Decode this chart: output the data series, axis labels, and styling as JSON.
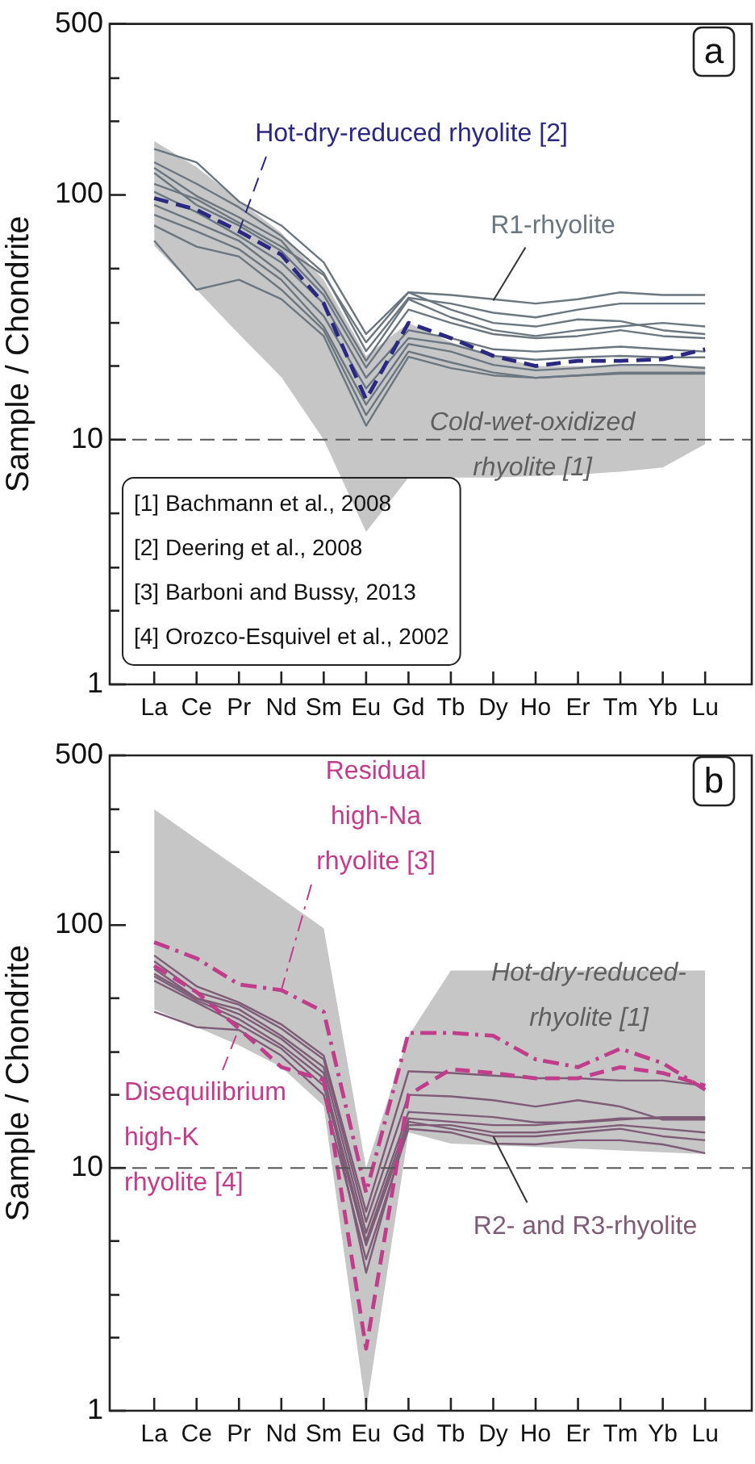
{
  "chart_data": [
    {
      "type": "line",
      "title": "a",
      "ylabel": "Sample / Chondrite",
      "log": "y",
      "ylim": [
        1,
        500
      ],
      "yticks": [
        1,
        {
          "value": 2,
          "label": null
        },
        {
          "value": 3,
          "label": null
        },
        {
          "value": 5,
          "label": null
        },
        10,
        {
          "value": 20,
          "label": null
        },
        {
          "value": 30,
          "label": null
        },
        {
          "value": 50,
          "label": null
        },
        100,
        {
          "value": 200,
          "label": null
        },
        {
          "value": 300,
          "label": null
        },
        500
      ],
      "categories": [
        "La",
        "Ce",
        "Pr",
        "Nd",
        "Sm",
        "Eu",
        "Gd",
        "Tb",
        "Dy",
        "Ho",
        "Er",
        "Tm",
        "Yb",
        "Lu"
      ],
      "ref_lines": [
        {
          "axis": "y",
          "value": 10,
          "color": "#555555",
          "line_style": "dashed"
        }
      ],
      "annotations": [
        "[1] Bachmann et al., 2008",
        "[2] Deering et al., 2008",
        "[3] Barboni and Bussy, 2013",
        "[4] Orozco-Esquivel et al., 2002",
        "Cold-wet-oxidized rhyolite [1]",
        {
          "text": "R1-rhyolite",
          "x": "Dy",
          "y": 37
        }
      ],
      "series": [
        {
          "type": "area",
          "color": "#c6c6c6",
          "values": [
            null,
            null,
            null,
            null,
            null,
            null,
            null,
            null,
            null,
            null,
            null,
            null,
            null,
            null
          ],
          "upper": [
            166,
            130,
            95,
            70,
            45,
            22,
            30,
            25,
            22,
            20,
            20,
            20,
            20,
            20
          ],
          "lower": [
            62,
            41,
            27,
            18,
            10,
            4.2,
            7,
            7,
            7,
            7.1,
            7.2,
            7.4,
            7.7,
            9.6
          ]
        },
        {
          "color": "#6b7780",
          "values": [
            154,
            136,
            94,
            75,
            53,
            27,
            40,
            39,
            37.5,
            36,
            37.5,
            40,
            39,
            39
          ]
        },
        {
          "color": "#6b7780",
          "values": [
            136,
            111,
            89,
            68,
            48,
            23,
            38,
            36,
            33,
            31.6,
            34,
            36,
            36,
            36
          ]
        },
        {
          "color": "#6b7780",
          "values": [
            129,
            99,
            81,
            65,
            41,
            21,
            37.5,
            31.6,
            28,
            26.5,
            28,
            29,
            30,
            29
          ]
        },
        {
          "color": "#6b7780",
          "values": [
            123,
            91,
            75,
            59,
            39,
            19.7,
            34,
            30,
            27,
            26,
            26.5,
            28,
            26.5,
            26
          ]
        },
        {
          "color": "#6b7780",
          "values": [
            103,
            85,
            68,
            53,
            36,
            17.9,
            28,
            26,
            23.4,
            22.9,
            23.4,
            24,
            23.4,
            22.9
          ]
        },
        {
          "color": "#6b7780",
          "values": [
            91,
            77,
            65,
            48,
            32,
            16.2,
            26,
            24.6,
            22,
            21.2,
            21.7,
            22,
            21.7,
            21.7
          ]
        },
        {
          "color": "#6b7780",
          "values": [
            83,
            71,
            60,
            45,
            29,
            13.9,
            24.6,
            22.9,
            20.2,
            19.2,
            19.6,
            20.2,
            20.2,
            19.6
          ]
        },
        {
          "color": "#6b7780",
          "values": [
            75,
            61.5,
            56,
            41,
            28,
            12.6,
            22.9,
            20.7,
            18.8,
            17.9,
            18.3,
            18.8,
            18.8,
            18.8
          ]
        },
        {
          "color": "#6b7780",
          "values": [
            65,
            41,
            45,
            37.5,
            26.5,
            11.4,
            21.8,
            19.6,
            18.3,
            17.9,
            18.3,
            18.6,
            18.6,
            18.6
          ]
        },
        {
          "color": "#6b7780",
          "values": [
            111,
            96,
            77,
            61.5,
            47,
            25,
            40,
            34,
            30,
            29,
            31,
            30.5,
            28,
            27
          ]
        },
        {
          "name": "Hot-dry-reduced rhyolite [2]",
          "color": "#2a2880",
          "line_style": "dashed",
          "values": [
            97,
            87,
            71,
            57,
            36,
            14.6,
            30,
            26,
            22,
            20,
            21,
            21,
            21.3,
            23.4
          ]
        }
      ]
    },
    {
      "type": "line",
      "title": "b",
      "ylabel": "Sample / Chondrite",
      "log": "y",
      "ylim": [
        1,
        500
      ],
      "yticks": [
        1,
        {
          "value": 2,
          "label": null
        },
        {
          "value": 3,
          "label": null
        },
        {
          "value": 5,
          "label": null
        },
        10,
        {
          "value": 20,
          "label": null
        },
        {
          "value": 30,
          "label": null
        },
        {
          "value": 50,
          "label": null
        },
        100,
        {
          "value": 200,
          "label": null
        },
        {
          "value": 300,
          "label": null
        },
        500
      ],
      "categories": [
        "La",
        "Ce",
        "Pr",
        "Nd",
        "Sm",
        "Eu",
        "Gd",
        "Tb",
        "Dy",
        "Ho",
        "Er",
        "Tm",
        "Yb",
        "Lu"
      ],
      "ref_lines": [
        {
          "axis": "y",
          "value": 10,
          "color": "#555555",
          "line_style": "dashed"
        }
      ],
      "annotations": [
        "Hot-dry-reduced-rhyolite [1]",
        {
          "text": "R2- and R3-rhyolite",
          "x": "Dy",
          "y": 13.5
        }
      ],
      "series": [
        {
          "type": "area",
          "color": "#c6c6c6",
          "values": [
            null,
            null,
            null,
            null,
            null,
            null,
            null,
            null,
            null,
            null,
            null,
            null,
            null,
            null
          ],
          "upper": [
            300,
            226,
            171,
            129,
            97,
            10,
            35,
            65,
            65,
            65,
            65,
            65,
            65,
            65
          ],
          "lower": [
            45,
            38,
            32,
            26,
            18,
            1,
            14,
            12.6,
            12.4,
            12.2,
            12,
            11.8,
            11.6,
            11.4
          ]
        },
        {
          "color": "#7e5b77",
          "values": [
            75,
            56,
            48,
            39,
            29,
            6.6,
            25,
            24.6,
            24,
            23.4,
            23.4,
            22.9,
            22.9,
            21.8
          ]
        },
        {
          "color": "#7e5b77",
          "values": [
            71,
            53,
            47,
            37.5,
            28,
            6,
            20,
            19.7,
            19,
            17.9,
            19,
            17.9,
            15.8,
            15.8
          ]
        },
        {
          "color": "#7e5b77",
          "values": [
            66,
            50,
            45,
            35,
            26,
            5.4,
            17,
            16.6,
            16.2,
            15.4,
            15.4,
            15.8,
            16.2,
            16.2
          ]
        },
        {
          "color": "#7e5b77",
          "values": [
            61.5,
            49,
            41,
            32,
            23.4,
            5,
            16,
            15.5,
            15,
            15,
            15.5,
            16,
            16,
            16
          ]
        },
        {
          "color": "#7e5b77",
          "values": [
            59,
            48,
            39,
            31,
            21.8,
            4.8,
            15,
            15,
            14,
            14,
            14.5,
            15,
            14.5,
            14
          ]
        },
        {
          "color": "#7e5b77",
          "values": [
            44,
            38,
            37,
            29,
            20,
            4.2,
            14.5,
            14,
            12.6,
            12.5,
            13,
            13,
            12.5,
            11.5
          ]
        },
        {
          "color": "#7e5b77",
          "values": [
            63,
            50,
            43,
            34,
            24.6,
            3.7,
            15.5,
            14.5,
            13.5,
            13.5,
            14,
            14.5,
            13.5,
            13
          ]
        },
        {
          "name": "Residual high-Na rhyolite [3]",
          "color": "#c13d8c",
          "line_style": "dashdot",
          "values": [
            85,
            73,
            57,
            54,
            44,
            7.9,
            36,
            36,
            35,
            28,
            26,
            31,
            27,
            21
          ]
        },
        {
          "name": "Disequilibrium high-K rhyolite [4]",
          "color": "#c13d8c",
          "line_style": "dashed",
          "values": [
            68,
            53,
            37.5,
            26,
            23,
            1.8,
            20,
            25.5,
            24.6,
            23.4,
            23.4,
            26,
            24.6,
            21.8
          ]
        }
      ]
    }
  ]
}
